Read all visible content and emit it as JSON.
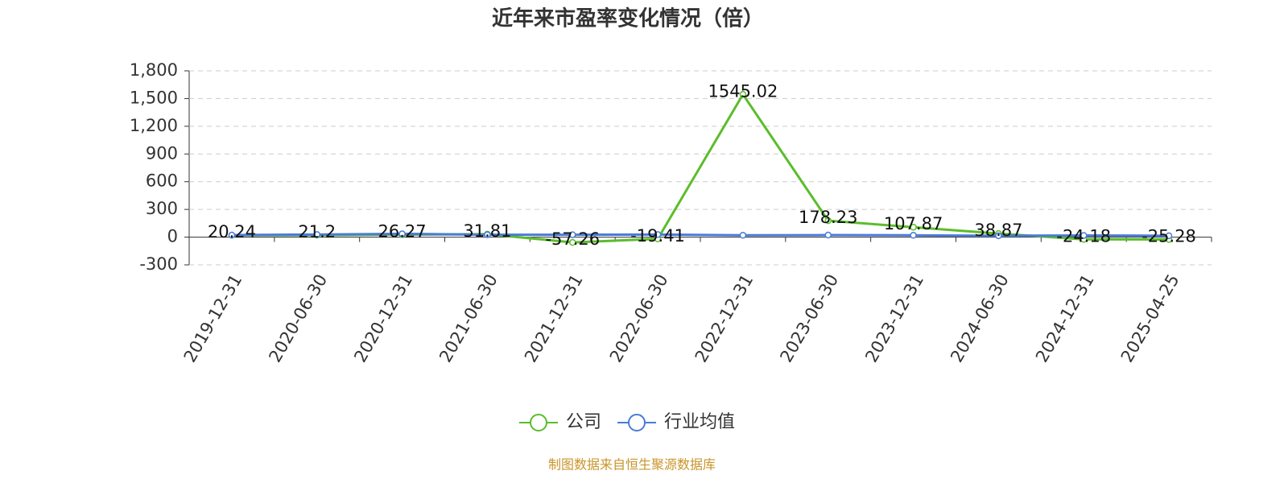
{
  "chart_data": {
    "type": "line",
    "title": "近年来市盈率变化情况（倍）",
    "categories": [
      "2019-12-31",
      "2020-06-30",
      "2020-12-31",
      "2021-06-30",
      "2021-12-31",
      "2022-06-30",
      "2022-12-31",
      "2023-06-30",
      "2023-12-31",
      "2024-06-30",
      "2024-12-31",
      "2025-04-25"
    ],
    "series": [
      {
        "name": "公司",
        "color": "#5bbd2b",
        "values": [
          20.24,
          21.2,
          26.27,
          31.81,
          -57.26,
          -19.41,
          1545.02,
          178.23,
          107.87,
          38.87,
          -24.18,
          -25.28
        ],
        "data_labels": true
      },
      {
        "name": "行业均值",
        "color": "#4a7bd8",
        "values": [
          22,
          28,
          36,
          26,
          26,
          28,
          20,
          22,
          20,
          15,
          18,
          15
        ],
        "data_labels": false
      }
    ],
    "ylim": [
      -300,
      1800
    ],
    "yticks": [
      -300,
      0,
      300,
      600,
      900,
      {
        "value": 1200,
        "label": "1,200"
      },
      {
        "value": 1500,
        "label": "1,500"
      },
      {
        "value": 1800,
        "label": "1,800"
      }
    ],
    "grid": true,
    "legend": "bottom",
    "source": "制图数据来自恒生聚源数据库"
  }
}
